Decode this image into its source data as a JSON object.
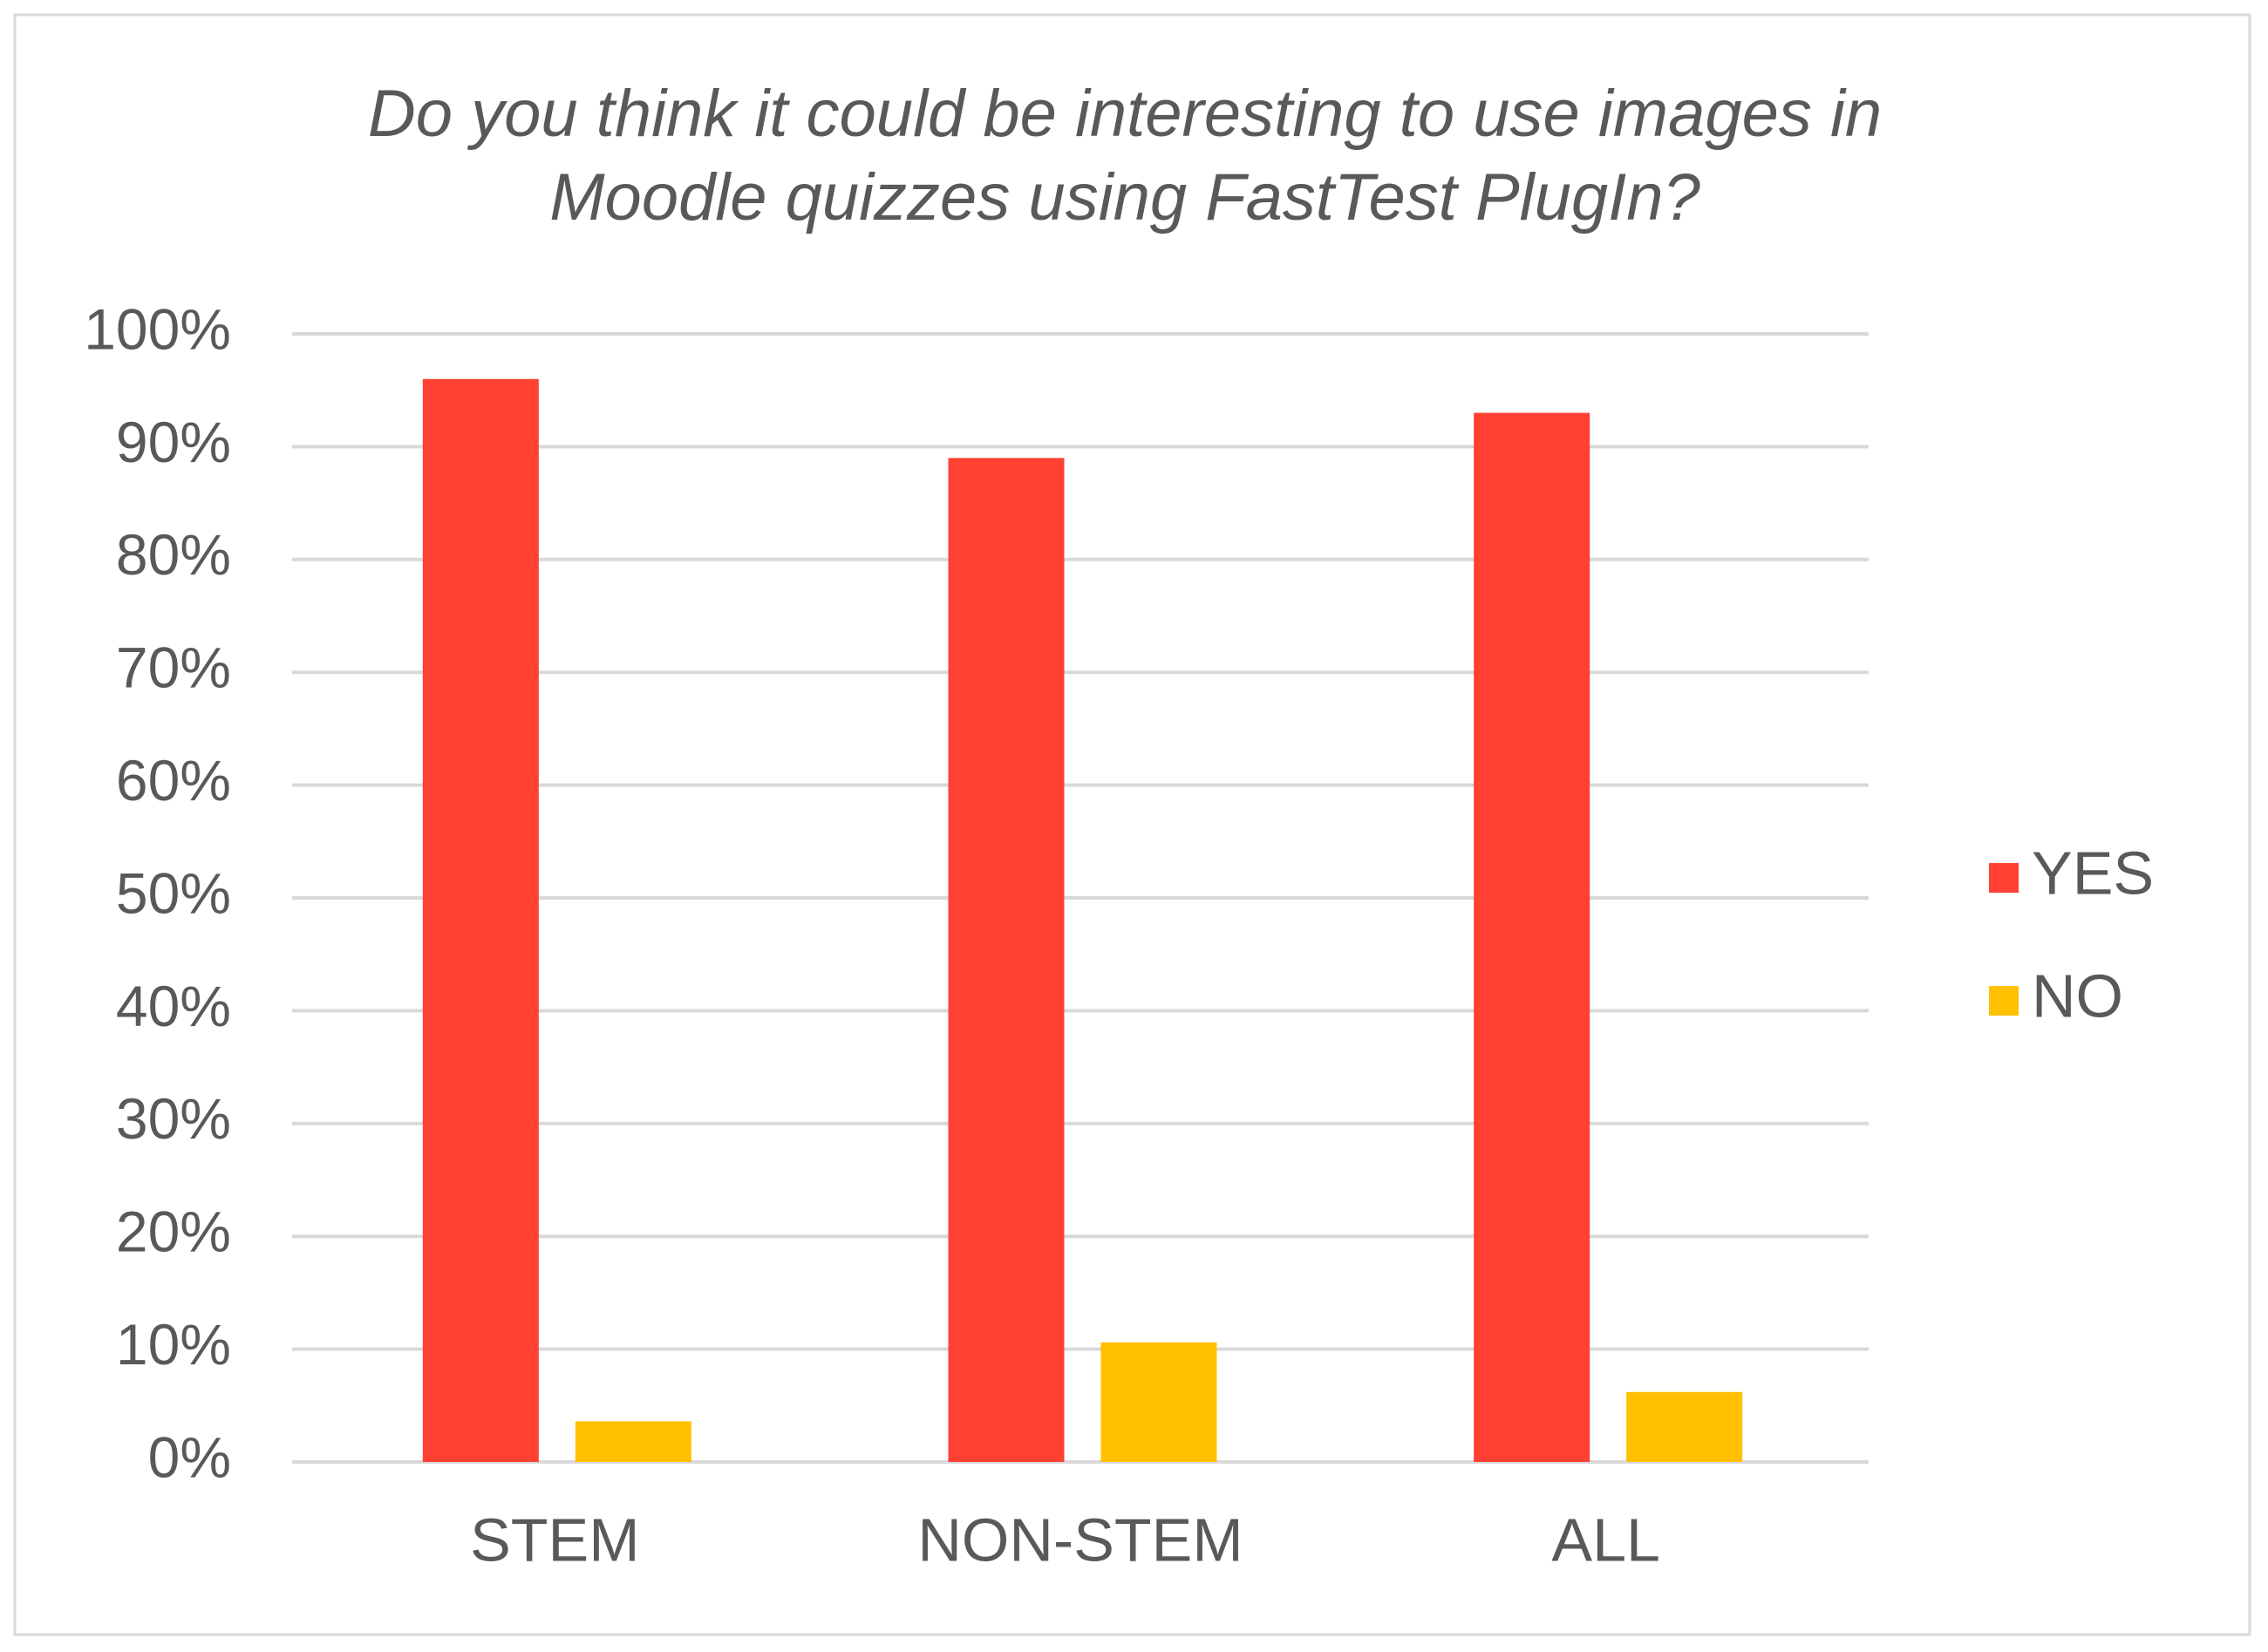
{
  "chart_data": {
    "type": "bar",
    "title": [
      "Do you think it could be interesting to use images in",
      "Moodle quizzes using FastTest PlugIn?"
    ],
    "categories": [
      "STEM",
      "NON-STEM",
      "ALL"
    ],
    "series": [
      {
        "name": "YES",
        "color": "#ff4033",
        "values": [
          96,
          89,
          93
        ]
      },
      {
        "name": "NO",
        "color": "#ffc000",
        "values": [
          3.6,
          10.6,
          6.2
        ]
      }
    ],
    "ylim": [
      0,
      100
    ],
    "yticks": [
      {
        "value": 0,
        "label": "0%"
      },
      {
        "value": 10,
        "label": "10%"
      },
      {
        "value": 20,
        "label": "20%"
      },
      {
        "value": 30,
        "label": "30%"
      },
      {
        "value": 40,
        "label": "40%"
      },
      {
        "value": 50,
        "label": "50%"
      },
      {
        "value": 60,
        "label": "60%"
      },
      {
        "value": 70,
        "label": "70%"
      },
      {
        "value": 80,
        "label": "80%"
      },
      {
        "value": 90,
        "label": "90%"
      },
      {
        "value": 100,
        "label": "100%"
      }
    ],
    "grid": true,
    "legend": "right"
  }
}
